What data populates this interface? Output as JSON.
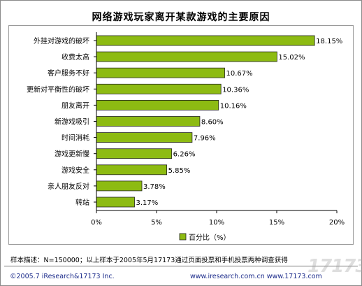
{
  "page": {
    "title": "网络游戏玩家离开某款游戏的主要原因",
    "sample_note": "样本描述：N=150000；以上样本于2005年5月17173通过页面投票和手机投票两种调查获得",
    "copyright": "©2005.7 iResearch&17173 Inc.",
    "websites": "www.iresearch.com.cn  www.17173.com",
    "watermark": "17173"
  },
  "colors": {
    "bar_fill": "#8dbb12",
    "bar_stroke": "#222222"
  },
  "chart_data": {
    "type": "bar",
    "orientation": "horizontal",
    "title": "网络游戏玩家离开某款游戏的主要原因",
    "categories": [
      "外挂对游戏的破坏",
      "收费太高",
      "客户服务不好",
      "更新对平衡性的破坏",
      "朋友离开",
      "新游戏吸引",
      "时间消耗",
      "游戏更新慢",
      "游戏安全",
      "亲人朋友反对",
      "转站"
    ],
    "values": [
      18.15,
      15.02,
      10.67,
      10.36,
      10.16,
      8.6,
      7.96,
      6.26,
      5.85,
      3.78,
      3.17
    ],
    "value_labels": [
      "18.15%",
      "15.02%",
      "10.67%",
      "10.36%",
      "10.16%",
      "8.60%",
      "7.96%",
      "6.26%",
      "5.85%",
      "3.78%",
      "3.17%"
    ],
    "series": [
      {
        "name": "百分比（%）",
        "values": [
          18.15,
          15.02,
          10.67,
          10.36,
          10.16,
          8.6,
          7.96,
          6.26,
          5.85,
          3.78,
          3.17
        ]
      }
    ],
    "xlim": [
      0,
      20
    ],
    "xticks": [
      "0%",
      "5%",
      "10%",
      "15%",
      "20%"
    ],
    "grid": false,
    "legend": "bottom-center"
  }
}
